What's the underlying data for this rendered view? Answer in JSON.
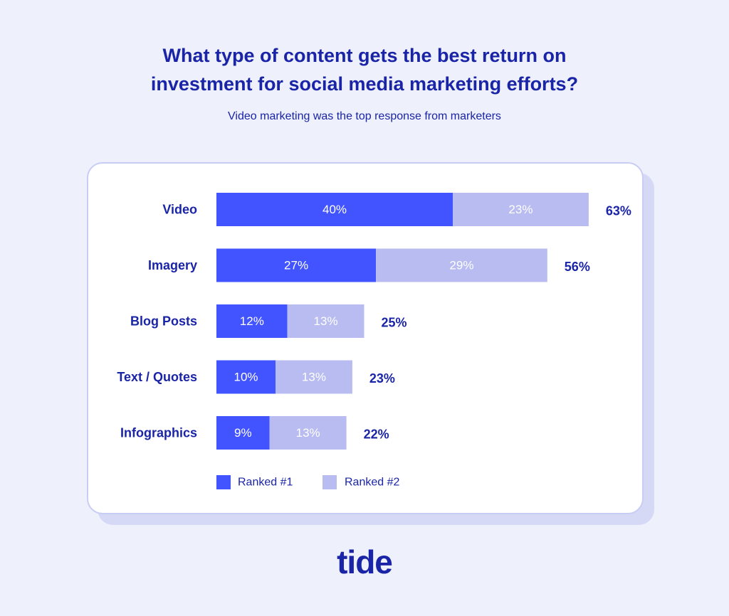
{
  "title_line1": "What type of content gets the best return on",
  "title_line2": "investment for social media marketing efforts?",
  "subtitle": "Video marketing was the top response from marketers",
  "logo": "tide",
  "colors": {
    "ranked1": "#4254ff",
    "ranked2": "#b8bcf0",
    "text": "#1a24a6",
    "background": "#eef0fc"
  },
  "chart_data": {
    "type": "bar",
    "orientation": "horizontal",
    "stacked": true,
    "categories": [
      "Video",
      "Imagery",
      "Blog Posts",
      "Text / Quotes",
      "Infographics"
    ],
    "series": [
      {
        "name": "Ranked #1",
        "values": [
          40,
          27,
          12,
          10,
          9
        ],
        "labels": [
          "40%",
          "27%",
          "12%",
          "10%",
          "9%"
        ]
      },
      {
        "name": "Ranked #2",
        "values": [
          23,
          29,
          13,
          13,
          13
        ],
        "labels": [
          "23%",
          "29%",
          "13%",
          "13%",
          "13%"
        ]
      }
    ],
    "totals": [
      "63%",
      "56%",
      "25%",
      "23%",
      "22%"
    ],
    "legend_position": "bottom-left",
    "grid": false
  }
}
